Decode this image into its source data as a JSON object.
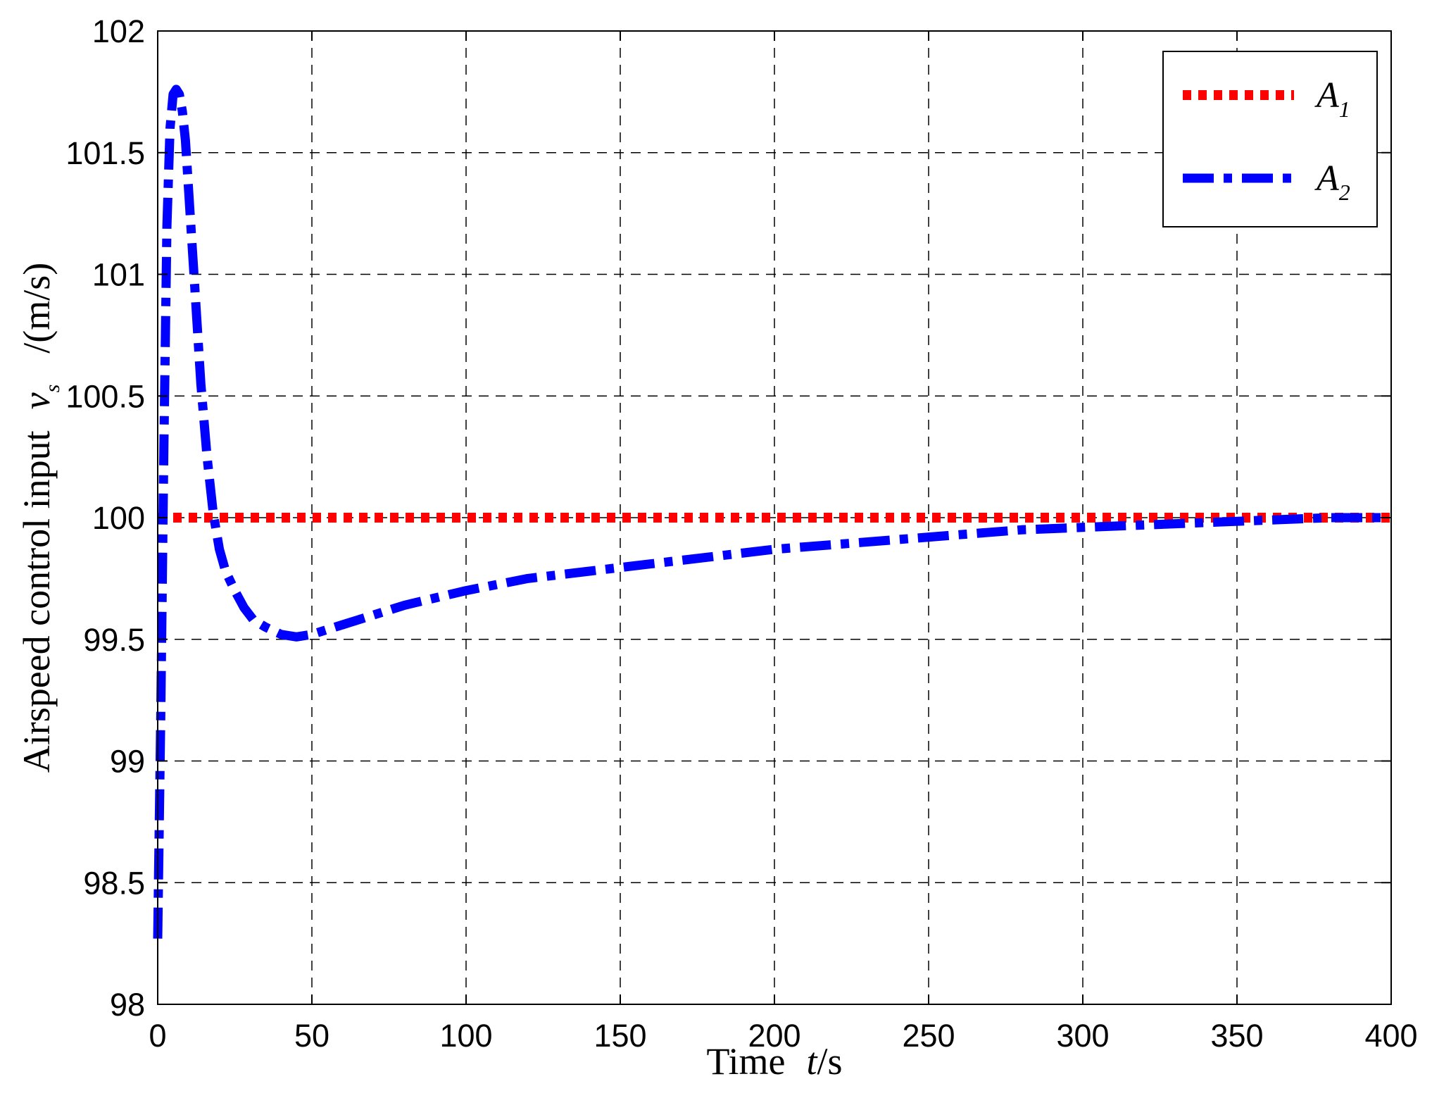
{
  "chart_data": {
    "type": "line",
    "title": "",
    "xlabel": {
      "text": "Time",
      "var": "t",
      "unit": "/s"
    },
    "ylabel": {
      "text": "Airspeed control input",
      "var": "v",
      "sub": "s",
      "unit": "/(m/s)"
    },
    "xlim": [
      0,
      400
    ],
    "ylim": [
      98,
      102
    ],
    "xticks": [
      0,
      50,
      100,
      150,
      200,
      250,
      300,
      350,
      400
    ],
    "yticks": [
      98,
      98.5,
      99,
      99.5,
      100,
      100.5,
      101,
      101.5,
      102
    ],
    "grid": true,
    "legend": {
      "placement": "top-right"
    },
    "series": [
      {
        "name": "A",
        "sub": "1",
        "color": "#ff0000",
        "style": "dotted",
        "x": [
          0,
          400
        ],
        "y": [
          100,
          100
        ]
      },
      {
        "name": "A",
        "sub": "2",
        "color": "#0000ff",
        "style": "dashdot",
        "x": [
          0,
          1,
          2,
          3,
          4,
          5,
          6,
          7,
          8,
          9,
          10,
          12,
          14,
          16,
          18,
          20,
          22,
          25,
          28,
          31,
          35,
          40,
          45,
          50,
          60,
          70,
          80,
          90,
          100,
          120,
          140,
          160,
          180,
          200,
          220,
          240,
          260,
          280,
          300,
          320,
          340,
          360,
          380,
          400
        ],
        "y": [
          98.27,
          99.2,
          100.3,
          101.2,
          101.6,
          101.74,
          101.76,
          101.74,
          101.67,
          101.55,
          101.35,
          100.95,
          100.55,
          100.25,
          100.02,
          99.87,
          99.78,
          99.7,
          99.63,
          99.58,
          99.55,
          99.52,
          99.51,
          99.52,
          99.56,
          99.6,
          99.64,
          99.67,
          99.7,
          99.75,
          99.78,
          99.81,
          99.84,
          99.87,
          99.89,
          99.91,
          99.93,
          99.95,
          99.96,
          99.97,
          99.98,
          99.99,
          100.0,
          100.0
        ]
      }
    ]
  }
}
